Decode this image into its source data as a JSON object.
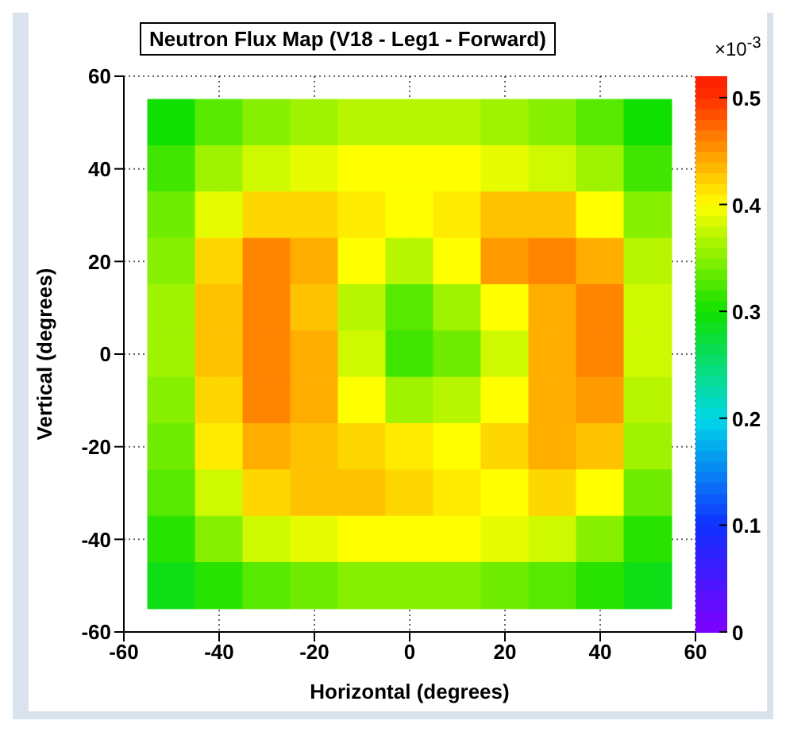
{
  "chart_data": {
    "type": "heatmap",
    "title": "Neutron Flux Map (V18 - Leg1 - Forward)",
    "xlabel": "Horizontal (degrees)",
    "ylabel": "Vertical (degrees)",
    "clabel": "×10$^{-3}$",
    "x": [
      -50,
      -40,
      -30,
      -20,
      -10,
      0,
      10,
      20,
      30,
      40,
      50
    ],
    "cells": [
      [
        0.3,
        0.33,
        0.35,
        0.36,
        0.37,
        0.37,
        0.37,
        0.36,
        0.35,
        0.33,
        0.3
      ],
      [
        0.32,
        0.36,
        0.38,
        0.39,
        0.4,
        0.4,
        0.4,
        0.39,
        0.38,
        0.36,
        0.32
      ],
      [
        0.34,
        0.39,
        0.42,
        0.42,
        0.41,
        0.4,
        0.41,
        0.43,
        0.43,
        0.4,
        0.35
      ],
      [
        0.35,
        0.42,
        0.46,
        0.44,
        0.4,
        0.37,
        0.4,
        0.45,
        0.46,
        0.44,
        0.37
      ],
      [
        0.36,
        0.43,
        0.46,
        0.43,
        0.37,
        0.33,
        0.36,
        0.4,
        0.44,
        0.46,
        0.38
      ],
      [
        0.36,
        0.43,
        0.46,
        0.44,
        0.38,
        0.32,
        0.34,
        0.38,
        0.44,
        0.46,
        0.38
      ],
      [
        0.35,
        0.42,
        0.46,
        0.44,
        0.4,
        0.36,
        0.37,
        0.4,
        0.44,
        0.45,
        0.37
      ],
      [
        0.34,
        0.41,
        0.44,
        0.43,
        0.42,
        0.41,
        0.4,
        0.42,
        0.44,
        0.43,
        0.36
      ],
      [
        0.33,
        0.38,
        0.42,
        0.43,
        0.43,
        0.42,
        0.41,
        0.4,
        0.42,
        0.4,
        0.34
      ],
      [
        0.31,
        0.35,
        0.38,
        0.39,
        0.4,
        0.4,
        0.4,
        0.39,
        0.38,
        0.35,
        0.31
      ],
      [
        0.29,
        0.31,
        0.33,
        0.34,
        0.35,
        0.35,
        0.35,
        0.34,
        0.33,
        0.31,
        0.29
      ]
    ],
    "xlim": [
      -60,
      60
    ],
    "xticks": [
      -60,
      -40,
      -20,
      0,
      20,
      40,
      60
    ],
    "ylim": [
      -60,
      60
    ],
    "yticks": [
      -60,
      -40,
      -20,
      0,
      20,
      40,
      60
    ],
    "clim": [
      0,
      0.52
    ],
    "cticks": [
      0,
      0.1,
      0.2,
      0.3,
      0.4,
      0.5
    ],
    "grid": true
  }
}
